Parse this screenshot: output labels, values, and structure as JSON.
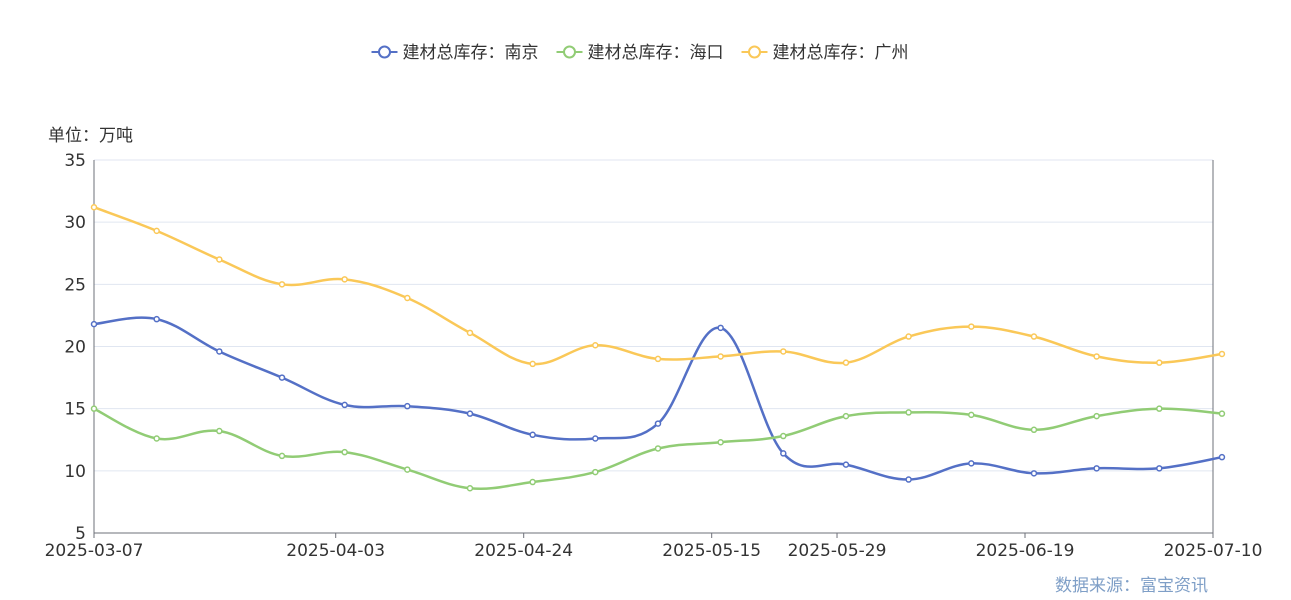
{
  "chart_data": {
    "type": "line",
    "title": "",
    "unit_label": "单位：万吨",
    "source": "数据来源：富宝资讯",
    "legend_position": "top-center",
    "grid": true,
    "ylim": [
      5,
      35
    ],
    "yticks": [
      "5",
      "10",
      "15",
      "20",
      "25",
      "30",
      "35"
    ],
    "xlim": [
      "2025-03-07",
      "2025-07-10"
    ],
    "xticks": [
      "2025-03-07",
      "2025-04-03",
      "2025-04-24",
      "2025-05-15",
      "2025-05-29",
      "2025-06-19",
      "2025-07-10"
    ],
    "x": [
      "2025-03-07",
      "2025-03-14",
      "2025-03-21",
      "2025-03-28",
      "2025-04-04",
      "2025-04-11",
      "2025-04-18",
      "2025-04-25",
      "2025-05-02",
      "2025-05-09",
      "2025-05-16",
      "2025-05-23",
      "2025-05-30",
      "2025-06-06",
      "2025-06-13",
      "2025-06-20",
      "2025-06-27",
      "2025-07-04",
      "2025-07-11"
    ],
    "series": [
      {
        "name": "建材总库存：南京",
        "color": "#5470c6",
        "values": [
          21.8,
          22.2,
          19.6,
          17.5,
          15.3,
          15.2,
          14.6,
          12.9,
          12.6,
          13.8,
          21.5,
          11.4,
          10.5,
          9.3,
          10.6,
          9.8,
          10.2,
          10.2,
          11.1
        ]
      },
      {
        "name": "建材总库存：海口",
        "color": "#91cc75",
        "values": [
          15.0,
          12.6,
          13.2,
          11.2,
          11.5,
          10.1,
          8.6,
          9.1,
          9.9,
          11.8,
          12.3,
          12.8,
          14.4,
          14.7,
          14.5,
          13.3,
          14.4,
          15.0,
          14.6
        ]
      },
      {
        "name": "建材总库存：广州",
        "color": "#fac858",
        "values": [
          31.2,
          29.3,
          27.0,
          25.0,
          25.4,
          23.9,
          21.1,
          18.6,
          20.1,
          19.0,
          19.2,
          19.6,
          18.7,
          20.8,
          21.6,
          20.8,
          19.2,
          18.7,
          19.4
        ]
      }
    ]
  }
}
